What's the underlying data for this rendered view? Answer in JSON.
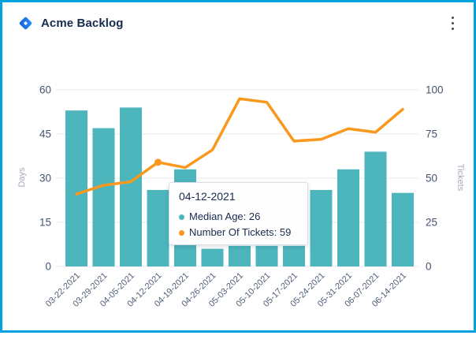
{
  "header": {
    "title": "Acme Backlog",
    "logo_icon": "diamond-logo",
    "menu_icon": "kebab-menu"
  },
  "chart_data": {
    "type": "bar+line",
    "categories": [
      "03-22-2021",
      "03-29-2021",
      "04-05-2021",
      "04-12-2021",
      "04-19-2021",
      "04-26-2021",
      "05-03-2021",
      "05-10-2021",
      "05-17-2021",
      "05-24-2021",
      "05-31-2021",
      "06-07-2021",
      "06-14-2021"
    ],
    "series": [
      {
        "name": "Median Age",
        "type": "bar",
        "axis": "left",
        "color": "#4DB5BC",
        "values": [
          53,
          47,
          54,
          26,
          33,
          6,
          7,
          7,
          7,
          26,
          33,
          39,
          25
        ]
      },
      {
        "name": "Number Of Tickets",
        "type": "line",
        "axis": "right",
        "color": "#F9981D",
        "values": [
          41,
          46,
          48,
          59,
          56,
          66,
          95,
          93,
          71,
          72,
          78,
          76,
          89
        ]
      }
    ],
    "left_axis": {
      "label": "Days",
      "ticks": [
        0,
        15,
        30,
        45,
        60
      ],
      "min": 0,
      "max": 60
    },
    "right_axis": {
      "label": "Tickets",
      "ticks": [
        0,
        25,
        50,
        75,
        100
      ],
      "min": 0,
      "max": 100
    },
    "grid": true,
    "legend": "none",
    "highlight_index": 3
  },
  "tooltip": {
    "title": "04-12-2021",
    "rows": [
      {
        "label": "Median Age",
        "value": "26",
        "color": "#4DB5BC"
      },
      {
        "label": "Number Of Tickets",
        "value": "59",
        "color": "#F9981D"
      }
    ]
  },
  "colors": {
    "bar": "#4DB5BC",
    "line": "#F9981D",
    "window_border": "#00A1DF",
    "tick_label": "#44546F",
    "x_label": "#505F79",
    "axis_title": "#A3AAB8",
    "gridline": "#E8EAEE",
    "title_text": "#172B4D"
  }
}
